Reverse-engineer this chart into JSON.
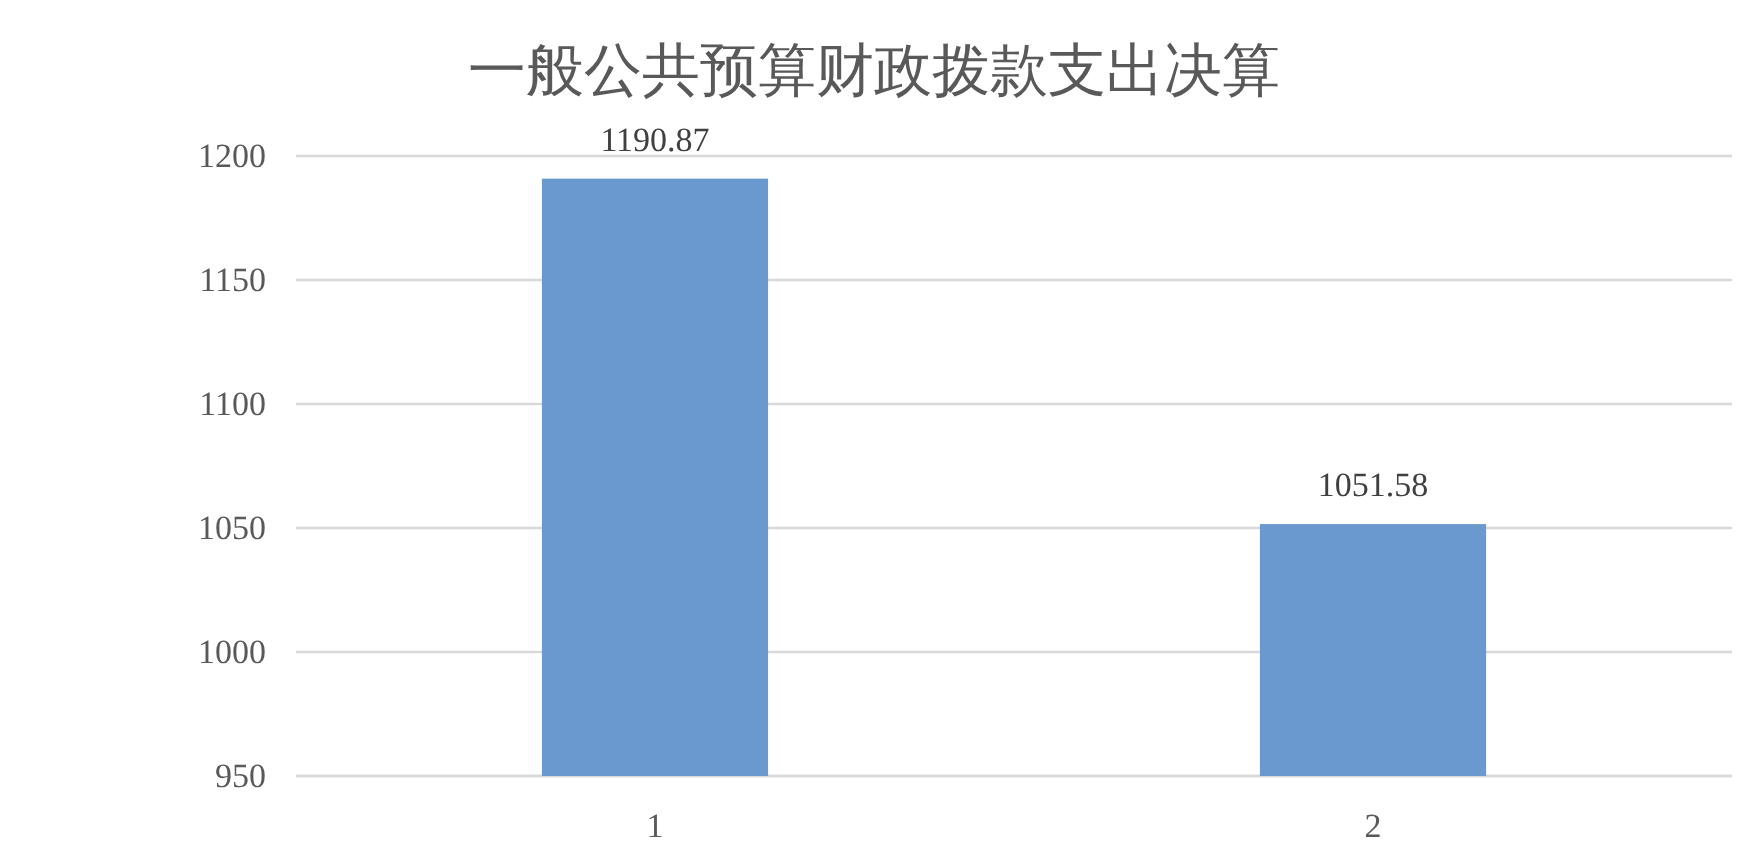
{
  "chart_data": {
    "type": "bar",
    "title": "一般公共预算财政拨款支出决算",
    "categories": [
      "1",
      "2"
    ],
    "values": [
      1190.87,
      1051.58
    ],
    "color": "#6a99cf",
    "ylim": [
      950,
      1200
    ],
    "yticks": [
      950,
      1000,
      1050,
      1100,
      1150,
      1200
    ],
    "grid": "y",
    "data_labels": true
  }
}
